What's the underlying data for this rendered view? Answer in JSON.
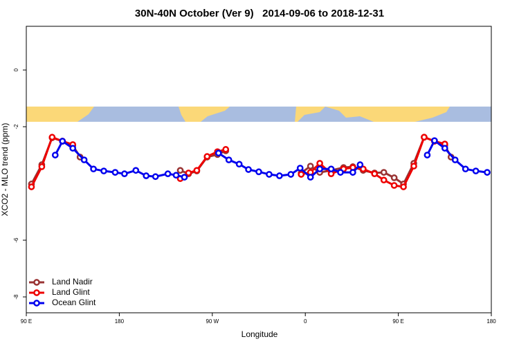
{
  "chart_data": {
    "type": "line",
    "title": "30N-40N October (Ver 9)   2014-09-06 to 2018-12-31",
    "x_label": "Longitude",
    "y_label": "XCO2 - MLO trend (ppm)",
    "xlim": [
      90,
      540
    ],
    "xticks": [
      {
        "value": 90,
        "label": "90 E"
      },
      180,
      {
        "value": 270,
        "label": "90 W"
      },
      {
        "value": 360,
        "label": "0"
      },
      {
        "value": 450,
        "label": "90 E"
      },
      {
        "value": 540,
        "label": "180"
      }
    ],
    "ylim": [
      -8.56,
      1.54
    ],
    "yticks": [
      -8,
      -6,
      -2,
      0
    ],
    "legend": "bottom-left",
    "series": [
      {
        "name": "Land Nadir",
        "color": "#993333",
        "x": [
          95,
          105,
          115,
          125,
          135,
          142,
          null,
          239,
          247,
          255,
          265,
          275,
          283,
          null,
          356,
          365,
          374,
          385,
          397,
          406,
          416,
          427,
          436,
          446,
          455,
          465,
          475,
          485,
          495,
          501
        ],
        "values": [
          -4.02,
          -3.34,
          -2.39,
          -2.51,
          -2.66,
          -3.07,
          null,
          -3.54,
          -3.66,
          -3.56,
          -3.07,
          -2.98,
          -2.85,
          null,
          -3.63,
          -3.39,
          -3.61,
          -3.54,
          -3.44,
          -3.41,
          -3.54,
          -3.63,
          -3.61,
          -3.8,
          -4.02,
          -3.29,
          -2.37,
          -2.51,
          -2.66,
          -3.07
        ]
      },
      {
        "name": "Land Glint",
        "color": "#ee0000",
        "x": [
          95,
          105,
          115,
          125,
          135,
          null,
          239,
          247,
          255,
          265,
          275,
          283,
          null,
          356,
          365,
          374,
          385,
          397,
          406,
          416,
          427,
          436,
          446,
          455,
          465,
          475,
          485,
          495
        ],
        "values": [
          -4.12,
          -3.41,
          -2.37,
          -2.51,
          -2.63,
          null,
          -3.83,
          -3.63,
          -3.54,
          -3.05,
          -2.88,
          -2.8,
          null,
          -3.68,
          -3.61,
          -3.29,
          -3.66,
          -3.49,
          -3.44,
          -3.49,
          -3.66,
          -3.88,
          -4.07,
          -4.12,
          -3.39,
          -2.37,
          -2.51,
          -2.61
        ]
      },
      {
        "name": "Ocean Glint",
        "color": "#0000ee",
        "x": [
          118,
          125,
          135,
          146,
          155,
          165,
          176,
          185,
          196,
          206,
          215,
          227,
          235,
          243,
          null,
          276,
          286,
          296,
          305,
          315,
          325,
          335,
          346,
          355,
          365,
          374,
          385,
          394,
          406,
          413,
          null,
          478,
          485,
          495,
          505,
          515,
          525,
          536
        ],
        "values": [
          -3.0,
          -2.51,
          -2.76,
          -3.17,
          -3.49,
          -3.56,
          -3.61,
          -3.66,
          -3.54,
          -3.73,
          -3.76,
          -3.66,
          -3.71,
          -3.78,
          null,
          -2.93,
          -3.17,
          -3.32,
          -3.51,
          -3.59,
          -3.68,
          -3.73,
          -3.68,
          -3.46,
          -3.78,
          -3.49,
          -3.49,
          -3.61,
          -3.61,
          -3.34,
          null,
          -3.0,
          -2.49,
          -2.76,
          -3.17,
          -3.49,
          -3.56,
          -3.61
        ]
      }
    ]
  }
}
